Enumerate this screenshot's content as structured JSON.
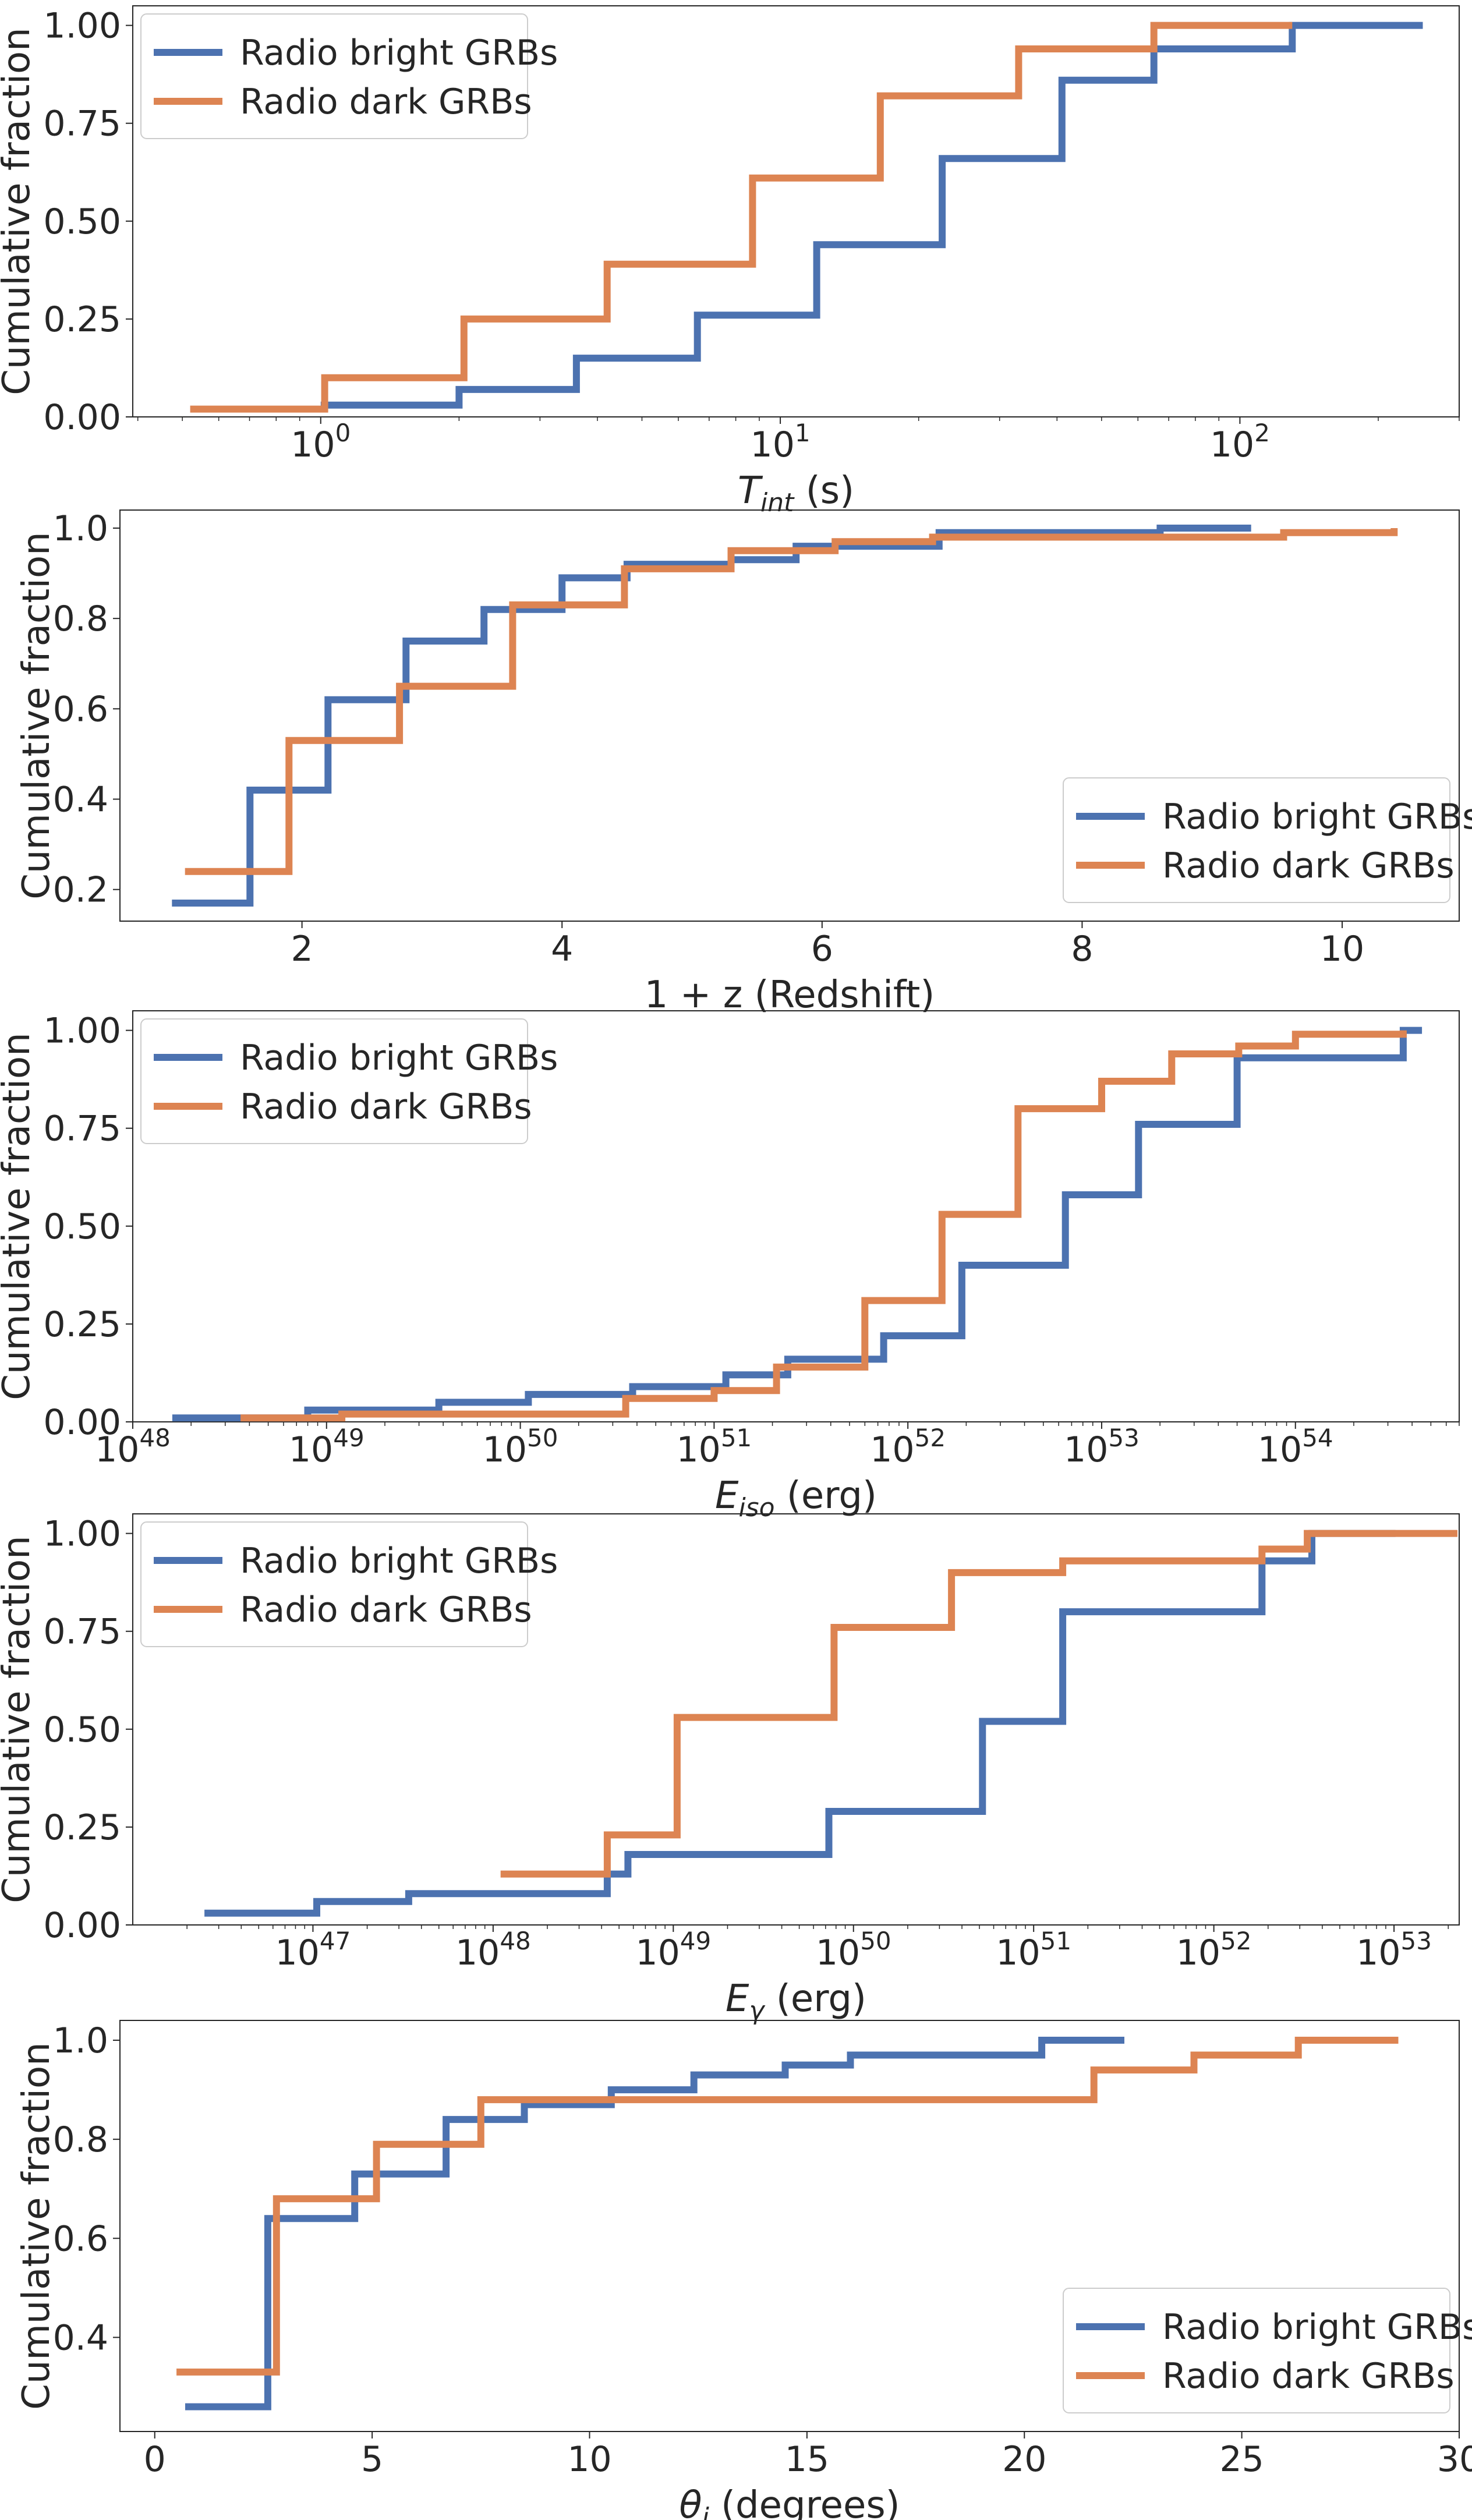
{
  "figure": {
    "series_colors": {
      "Radio bright GRBs": "#4C72B0",
      "Radio dark GRBs": "#DD8452"
    }
  },
  "chart_data": [
    {
      "type": "line",
      "step": "post",
      "xscale": "log",
      "xlabel": {
        "italic": "T",
        "sub": "int",
        "rest": " (s)"
      },
      "ylabel": "Cumulative fraction",
      "xlim": [
        0.39,
        300
      ],
      "ylim": [
        0.0,
        1.05
      ],
      "xticks": [
        {
          "v": 1,
          "base": "10",
          "exp": "0"
        },
        {
          "v": 10,
          "base": "10",
          "exp": "1"
        },
        {
          "v": 100,
          "base": "10",
          "exp": "2"
        }
      ],
      "yticks": [
        {
          "v": 0.0,
          "label": "0.00"
        },
        {
          "v": 0.25,
          "label": "0.25"
        },
        {
          "v": 0.5,
          "label": "0.50"
        },
        {
          "v": 0.75,
          "label": "0.75"
        },
        {
          "v": 1.0,
          "label": "1.00"
        }
      ],
      "legend": {
        "loc": "upper-left",
        "entries": [
          "Radio bright GRBs",
          "Radio dark GRBs"
        ]
      },
      "series": [
        {
          "name": "Radio bright GRBs",
          "x": [
            1.0,
            2.0,
            3.6,
            6.6,
            12.0,
            22.5,
            41.0,
            65.0,
            130.0,
            250.0
          ],
          "y": [
            0.03,
            0.07,
            0.15,
            0.26,
            0.44,
            0.66,
            0.86,
            0.94,
            1.0,
            1.0
          ]
        },
        {
          "name": "Radio dark GRBs",
          "x": [
            0.52,
            1.02,
            2.05,
            4.2,
            8.7,
            16.5,
            33.0,
            65.0,
            130.0
          ],
          "y": [
            0.02,
            0.1,
            0.25,
            0.39,
            0.61,
            0.82,
            0.94,
            1.0,
            1.0
          ]
        }
      ]
    },
    {
      "type": "line",
      "step": "post",
      "xscale": "linear",
      "xlabel": {
        "italic": "",
        "sub": "",
        "rest": "1 + z (Redshift)"
      },
      "ylabel": "Cumulative fraction",
      "xlim": [
        0.6,
        10.9
      ],
      "ylim": [
        0.13,
        1.04
      ],
      "xticks": [
        {
          "v": 2,
          "label": "2"
        },
        {
          "v": 4,
          "label": "4"
        },
        {
          "v": 6,
          "label": "6"
        },
        {
          "v": 8,
          "label": "8"
        },
        {
          "v": 10,
          "label": "10"
        }
      ],
      "yticks": [
        {
          "v": 0.2,
          "label": "0.2"
        },
        {
          "v": 0.4,
          "label": "0.4"
        },
        {
          "v": 0.6,
          "label": "0.6"
        },
        {
          "v": 0.8,
          "label": "0.8"
        },
        {
          "v": 1.0,
          "label": "1.0"
        }
      ],
      "legend": {
        "loc": "lower-right",
        "entries": [
          "Radio bright GRBs",
          "Radio dark GRBs"
        ]
      },
      "series": [
        {
          "name": "Radio bright GRBs",
          "x": [
            1.0,
            1.6,
            2.2,
            2.8,
            3.4,
            4.0,
            4.5,
            5.3,
            5.8,
            6.9,
            8.6,
            9.3
          ],
          "y": [
            0.17,
            0.42,
            0.62,
            0.75,
            0.82,
            0.89,
            0.92,
            0.93,
            0.96,
            0.99,
            1.0,
            1.0
          ]
        },
        {
          "name": "Radio dark GRBs",
          "x": [
            1.1,
            1.9,
            2.75,
            3.62,
            4.48,
            5.3,
            6.1,
            6.85,
            9.55,
            10.4
          ],
          "y": [
            0.24,
            0.53,
            0.65,
            0.83,
            0.91,
            0.95,
            0.97,
            0.98,
            0.99,
            1.0
          ]
        }
      ]
    },
    {
      "type": "line",
      "step": "post",
      "xscale": "log",
      "xlabel": {
        "italic": "E",
        "sub": "iso",
        "rest": " (erg)"
      },
      "ylabel": "Cumulative fraction",
      "xlim": [
        1e+48,
        7e+54
      ],
      "ylim": [
        0.0,
        1.05
      ],
      "xticks": [
        {
          "v": 1e+48,
          "base": "10",
          "exp": "48"
        },
        {
          "v": 1e+49,
          "base": "10",
          "exp": "49"
        },
        {
          "v": 1e+50,
          "base": "10",
          "exp": "50"
        },
        {
          "v": 1e+51,
          "base": "10",
          "exp": "51"
        },
        {
          "v": 1e+52,
          "base": "10",
          "exp": "52"
        },
        {
          "v": 1e+53,
          "base": "10",
          "exp": "53"
        },
        {
          "v": 1e+54,
          "base": "10",
          "exp": "54"
        }
      ],
      "yticks": [
        {
          "v": 0.0,
          "label": "0.00"
        },
        {
          "v": 0.25,
          "label": "0.25"
        },
        {
          "v": 0.5,
          "label": "0.50"
        },
        {
          "v": 0.75,
          "label": "0.75"
        },
        {
          "v": 1.0,
          "label": "1.00"
        }
      ],
      "legend": {
        "loc": "upper-left",
        "entries": [
          "Radio bright GRBs",
          "Radio dark GRBs"
        ]
      },
      "series": [
        {
          "name": "Radio bright GRBs",
          "x": [
            1.6e+48,
            8e+48,
            3.8e+49,
            1.1e+50,
            3.8e+50,
            1.15e+51,
            2.4e+51,
            7.5e+51,
            1.9e+52,
            6.5e+52,
            1.55e+53,
            5e+53,
            3.6e+54,
            4.5e+54
          ],
          "y": [
            0.01,
            0.03,
            0.05,
            0.07,
            0.09,
            0.12,
            0.16,
            0.22,
            0.4,
            0.58,
            0.76,
            0.93,
            1.0,
            1.0
          ]
        },
        {
          "name": "Radio dark GRBs",
          "x": [
            3.6e+48,
            1.2e+49,
            3.5e+50,
            1e+51,
            2.1e+51,
            6e+51,
            1.5e+52,
            3.7e+52,
            1e+53,
            2.3e+53,
            5.1e+53,
            1e+54,
            3.6e+54
          ],
          "y": [
            0.01,
            0.02,
            0.06,
            0.08,
            0.14,
            0.31,
            0.53,
            0.8,
            0.87,
            0.94,
            0.96,
            0.99,
            1.0
          ]
        }
      ]
    },
    {
      "type": "line",
      "step": "post",
      "xscale": "log",
      "xlabel": {
        "italic": "E",
        "sub": "γ",
        "rest": " (erg)"
      },
      "ylabel": "Cumulative fraction",
      "xlim": [
        1e+46,
        2.3e+53
      ],
      "ylim": [
        0.0,
        1.05
      ],
      "xticks": [
        {
          "v": 1e+47,
          "base": "10",
          "exp": "47"
        },
        {
          "v": 1e+48,
          "base": "10",
          "exp": "48"
        },
        {
          "v": 1e+49,
          "base": "10",
          "exp": "49"
        },
        {
          "v": 1e+50,
          "base": "10",
          "exp": "50"
        },
        {
          "v": 1e+51,
          "base": "10",
          "exp": "51"
        },
        {
          "v": 1e+52,
          "base": "10",
          "exp": "52"
        },
        {
          "v": 1e+53,
          "base": "10",
          "exp": "53"
        }
      ],
      "yticks": [
        {
          "v": 0.0,
          "label": "0.00"
        },
        {
          "v": 0.25,
          "label": "0.25"
        },
        {
          "v": 0.5,
          "label": "0.50"
        },
        {
          "v": 0.75,
          "label": "0.75"
        },
        {
          "v": 1.0,
          "label": "1.00"
        }
      ],
      "legend": {
        "loc": "upper-left",
        "entries": [
          "Radio bright GRBs",
          "Radio dark GRBs"
        ]
      },
      "series": [
        {
          "name": "Radio bright GRBs",
          "x": [
            2.5e+46,
            1.05e+47,
            3.4e+47,
            4.3e+48,
            5.6e+48,
            7.3e+49,
            5.2e+50,
            1.45e+51,
            1.85e+52,
            3.5e+52,
            1.02e+53
          ],
          "y": [
            0.03,
            0.06,
            0.08,
            0.13,
            0.18,
            0.29,
            0.52,
            0.8,
            0.93,
            1.0,
            1.0
          ]
        },
        {
          "name": "Radio dark GRBs",
          "x": [
            1.1e+48,
            4.3e+48,
            1.05e+49,
            7.8e+49,
            3.5e+50,
            1.45e+51,
            1.85e+52,
            3.3e+52,
            2.25e+53
          ],
          "y": [
            0.13,
            0.23,
            0.53,
            0.76,
            0.9,
            0.93,
            0.96,
            1.0,
            1.0
          ]
        }
      ]
    },
    {
      "type": "line",
      "step": "post",
      "xscale": "linear",
      "xlabel": {
        "italic": "θ",
        "sub": "j",
        "rest": " (degrees)"
      },
      "ylabel": "Cumulative fraction",
      "xlim": [
        -0.8,
        30.0
      ],
      "ylim": [
        0.21,
        1.04
      ],
      "xticks": [
        {
          "v": 0,
          "label": "0"
        },
        {
          "v": 5,
          "label": "5"
        },
        {
          "v": 10,
          "label": "10"
        },
        {
          "v": 15,
          "label": "15"
        },
        {
          "v": 20,
          "label": "20"
        },
        {
          "v": 25,
          "label": "25"
        },
        {
          "v": 30,
          "label": "30"
        }
      ],
      "yticks": [
        {
          "v": 0.4,
          "label": "0.4"
        },
        {
          "v": 0.6,
          "label": "0.6"
        },
        {
          "v": 0.8,
          "label": "0.8"
        },
        {
          "v": 1.0,
          "label": "1.0"
        }
      ],
      "legend": {
        "loc": "lower-right",
        "entries": [
          "Radio bright GRBs",
          "Radio dark GRBs"
        ]
      },
      "series": [
        {
          "name": "Radio bright GRBs",
          "x": [
            0.7,
            2.6,
            4.6,
            6.7,
            8.5,
            10.5,
            12.4,
            14.5,
            16.0,
            20.4,
            22.3
          ],
          "y": [
            0.26,
            0.64,
            0.73,
            0.84,
            0.87,
            0.9,
            0.93,
            0.95,
            0.97,
            1.0,
            1.0
          ]
        },
        {
          "name": "Radio dark GRBs",
          "x": [
            0.5,
            2.8,
            5.1,
            7.5,
            21.6,
            23.9,
            26.3,
            28.6
          ],
          "y": [
            0.33,
            0.68,
            0.79,
            0.88,
            0.94,
            0.97,
            1.0,
            1.0
          ]
        }
      ]
    }
  ]
}
